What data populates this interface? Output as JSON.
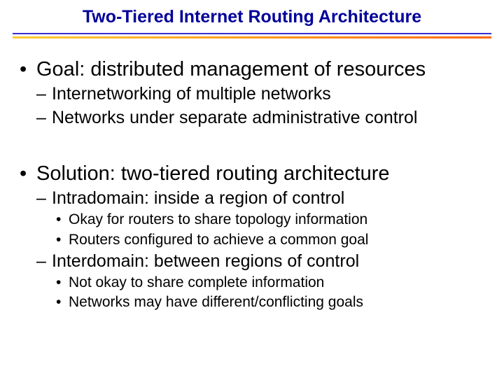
{
  "title": {
    "text": "Two-Tiered Internet Routing Architecture",
    "color": "#000099",
    "fontsize": 25
  },
  "underline": {
    "blue": "#3a2ecf",
    "orange_left": "#ffcc33",
    "orange_right": "#ff6600"
  },
  "bullets": {
    "goal": {
      "text": "Goal: distributed management of resources",
      "subs": [
        "Internetworking of multiple networks",
        "Networks under separate administrative control"
      ]
    },
    "solution": {
      "text": "Solution: two-tiered routing architecture",
      "intradomain": {
        "text": "Intradomain: inside a region of control",
        "subs": [
          "Okay for routers to share topology information",
          "Routers configured to achieve a common goal"
        ]
      },
      "interdomain": {
        "text": "Interdomain: between regions of control",
        "subs": [
          "Not okay to share complete information",
          "Networks may have different/conflicting goals"
        ]
      }
    }
  }
}
